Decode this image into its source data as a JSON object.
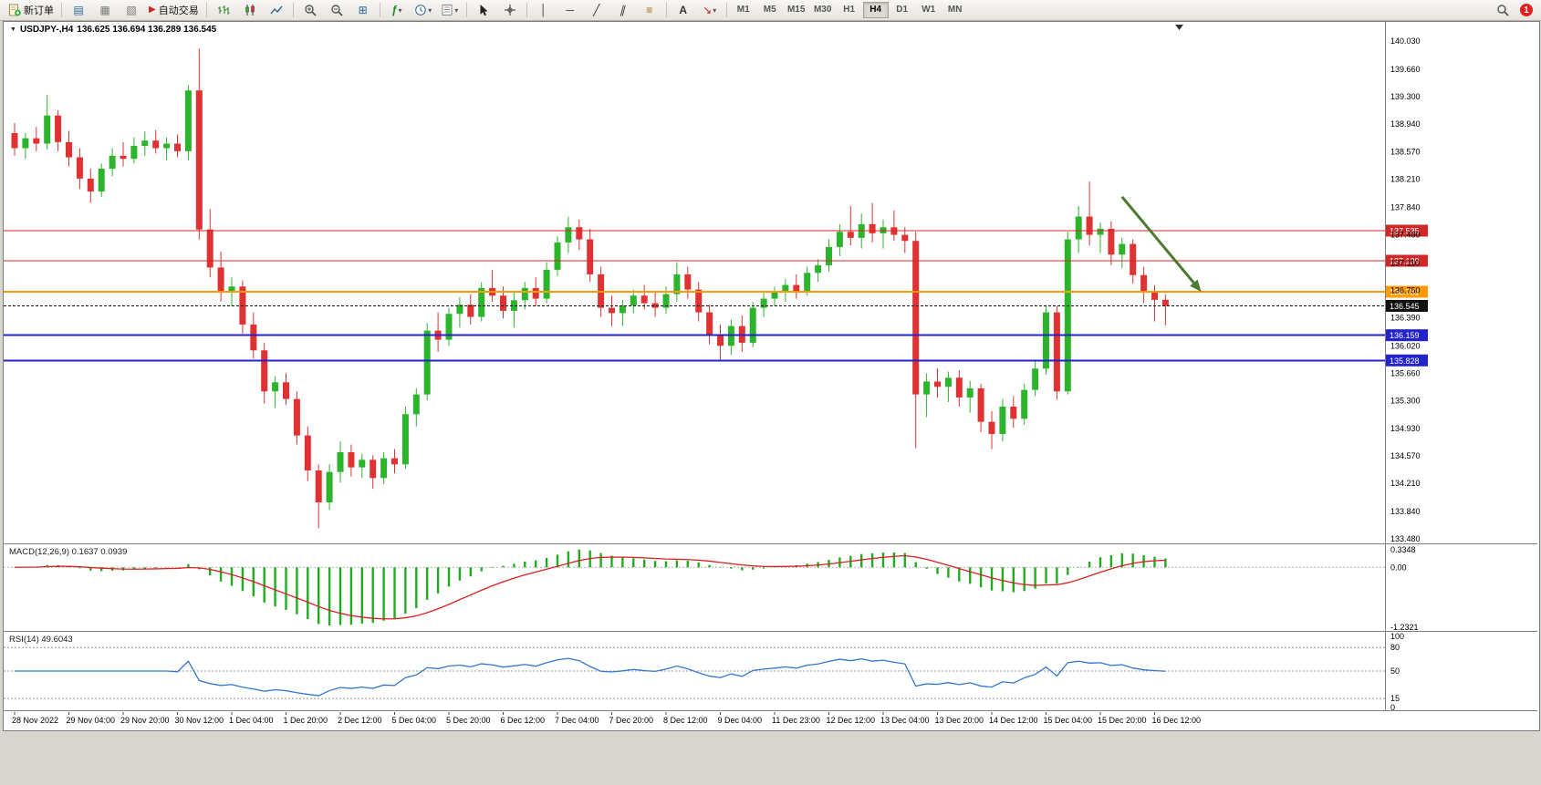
{
  "toolbar": {
    "new_order": "新订单",
    "auto_trading": "自动交易",
    "timeframes": [
      "M1",
      "M5",
      "M15",
      "M30",
      "H1",
      "H4",
      "D1",
      "W1",
      "MN"
    ],
    "active_timeframe": "H4",
    "notification_count": "1"
  },
  "icons": {
    "market_watch": "▤",
    "data_window": "▦",
    "navigator": "▧",
    "tile_windows": "⊞",
    "indicators": "ƒ",
    "vline": "│",
    "hline": "─",
    "trendline": "╱",
    "channel": "∥",
    "fibonacci": "≡",
    "text": "A",
    "arrows": "↘",
    "caret": "▾",
    "autotrade_play": "▶",
    "title_triangle": "▼"
  },
  "chart": {
    "symbol_title": "USDJPY-,H4",
    "ohlc_text": "136.625 136.694 136.289 136.545"
  },
  "macd": {
    "label": "MACD(12,26,9) 0.1637 0.0939",
    "axis_labels": [
      "0.3348",
      "0.00",
      "-1.2321"
    ]
  },
  "rsi": {
    "label": "RSI(14) 49.6043",
    "axis_labels": [
      "100",
      "80",
      "50",
      "15",
      "0"
    ],
    "levels": [
      80,
      50,
      15
    ]
  },
  "theme": {
    "bull": "#2DB42D",
    "bear": "#E03232",
    "macd_hist": "#1FAD1F",
    "macd_signal": "#D82222",
    "rsi_line": "#3377CC",
    "grid_dash": "#999999",
    "axis_line": "#808080",
    "arrow": "#4C7A2F"
  },
  "chart_data": {
    "type": "candlestick",
    "symbol": "USDJPY-",
    "timeframe": "H4",
    "current_bar": {
      "open": 136.625,
      "high": 136.694,
      "low": 136.289,
      "close": 136.545
    },
    "price_axis_labels": [
      "140.030",
      "139.660",
      "139.300",
      "138.940",
      "138.570",
      "138.210",
      "137.840",
      "137.480",
      "137.110",
      "136.750",
      "136.390",
      "136.020",
      "135.660",
      "135.300",
      "134.930",
      "134.570",
      "134.210",
      "133.840",
      "133.480"
    ],
    "time_labels": [
      "28 Nov 2022",
      "29 Nov 04:00",
      "29 Nov 20:00",
      "30 Nov 12:00",
      "1 Dec 04:00",
      "1 Dec 20:00",
      "2 Dec 12:00",
      "5 Dec 04:00",
      "5 Dec 20:00",
      "6 Dec 12:00",
      "7 Dec 04:00",
      "7 Dec 20:00",
      "8 Dec 12:00",
      "9 Dec 04:00",
      "11 Dec 23:00",
      "12 Dec 12:00",
      "13 Dec 04:00",
      "13 Dec 20:00",
      "14 Dec 12:00",
      "15 Dec 04:00",
      "15 Dec 20:00",
      "16 Dec 12:00"
    ],
    "candles_per_time_label": 5,
    "hlines": [
      {
        "value": 137.535,
        "label": "137.535",
        "color": "#D02828",
        "width": 1
      },
      {
        "value": 137.139,
        "label": "137.139",
        "color": "#D02828",
        "width": 1
      },
      {
        "value": 136.731,
        "label": "136.731",
        "color": "#FF9A00",
        "width": 2
      },
      {
        "value": 136.159,
        "label": "136.159",
        "color": "#2323CC",
        "width": 2
      },
      {
        "value": 135.828,
        "label": "135.828",
        "color": "#2323CC",
        "width": 2
      }
    ],
    "bid_line": {
      "value": 136.545,
      "label": "136.545",
      "color": "#101010"
    },
    "indicators": [
      {
        "name": "MACD",
        "params": [
          12,
          26,
          9
        ],
        "values": [
          "0.1637",
          "0.0939"
        ]
      },
      {
        "name": "RSI",
        "params": [
          14
        ],
        "values": [
          "49.6043"
        ]
      }
    ],
    "annotation_arrow": {
      "from": {
        "index": 102,
        "price": 137.98
      },
      "to": {
        "index": 109.3,
        "price": 136.73
      },
      "color": "#4C7A2F"
    },
    "candles_ohlc": [
      [
        138.82,
        138.95,
        138.52,
        138.62
      ],
      [
        138.62,
        138.82,
        138.48,
        138.75
      ],
      [
        138.75,
        138.9,
        138.58,
        138.68
      ],
      [
        138.68,
        139.32,
        138.6,
        139.05
      ],
      [
        139.05,
        139.12,
        138.58,
        138.7
      ],
      [
        138.7,
        138.85,
        138.38,
        138.5
      ],
      [
        138.5,
        138.62,
        138.08,
        138.22
      ],
      [
        138.22,
        138.35,
        137.9,
        138.05
      ],
      [
        138.05,
        138.42,
        137.98,
        138.35
      ],
      [
        138.35,
        138.62,
        138.25,
        138.52
      ],
      [
        138.52,
        138.7,
        138.38,
        138.48
      ],
      [
        138.48,
        138.76,
        138.42,
        138.65
      ],
      [
        138.65,
        138.84,
        138.52,
        138.72
      ],
      [
        138.72,
        138.86,
        138.55,
        138.62
      ],
      [
        138.62,
        138.76,
        138.46,
        138.68
      ],
      [
        138.68,
        138.8,
        138.5,
        138.58
      ],
      [
        138.58,
        139.45,
        138.46,
        139.38
      ],
      [
        139.38,
        139.93,
        137.42,
        137.55
      ],
      [
        137.55,
        137.82,
        136.92,
        137.05
      ],
      [
        137.05,
        137.26,
        136.6,
        136.72
      ],
      [
        136.72,
        136.92,
        136.54,
        136.8
      ],
      [
        136.8,
        136.88,
        136.18,
        136.3
      ],
      [
        136.3,
        136.46,
        135.85,
        135.96
      ],
      [
        135.96,
        136.06,
        135.26,
        135.42
      ],
      [
        135.42,
        135.62,
        135.2,
        135.54
      ],
      [
        135.54,
        135.66,
        135.24,
        135.32
      ],
      [
        135.32,
        135.42,
        134.72,
        134.84
      ],
      [
        134.84,
        134.96,
        134.24,
        134.38
      ],
      [
        134.38,
        134.46,
        133.62,
        133.96
      ],
      [
        133.96,
        134.46,
        133.86,
        134.36
      ],
      [
        134.36,
        134.76,
        134.22,
        134.62
      ],
      [
        134.62,
        134.72,
        134.3,
        134.42
      ],
      [
        134.42,
        134.6,
        134.28,
        134.52
      ],
      [
        134.52,
        134.58,
        134.14,
        134.28
      ],
      [
        134.28,
        134.62,
        134.2,
        134.54
      ],
      [
        134.54,
        134.66,
        134.34,
        134.46
      ],
      [
        134.46,
        135.22,
        134.4,
        135.12
      ],
      [
        135.12,
        135.46,
        134.96,
        135.38
      ],
      [
        135.38,
        136.32,
        135.3,
        136.22
      ],
      [
        136.22,
        136.46,
        135.94,
        136.1
      ],
      [
        136.1,
        136.52,
        136.02,
        136.44
      ],
      [
        136.44,
        136.66,
        136.26,
        136.56
      ],
      [
        136.56,
        136.7,
        136.3,
        136.4
      ],
      [
        136.4,
        136.86,
        136.34,
        136.78
      ],
      [
        136.78,
        137.02,
        136.6,
        136.68
      ],
      [
        136.68,
        136.8,
        136.38,
        136.48
      ],
      [
        136.48,
        136.72,
        136.26,
        136.62
      ],
      [
        136.62,
        136.86,
        136.5,
        136.78
      ],
      [
        136.78,
        136.92,
        136.54,
        136.64
      ],
      [
        136.64,
        137.12,
        136.58,
        137.02
      ],
      [
        137.02,
        137.46,
        136.94,
        137.38
      ],
      [
        137.38,
        137.72,
        137.24,
        137.58
      ],
      [
        137.58,
        137.68,
        137.28,
        137.42
      ],
      [
        137.42,
        137.56,
        136.86,
        136.96
      ],
      [
        136.96,
        137.06,
        136.4,
        136.52
      ],
      [
        136.52,
        136.68,
        136.28,
        136.45
      ],
      [
        136.45,
        136.62,
        136.28,
        136.55
      ],
      [
        136.55,
        136.76,
        136.45,
        136.68
      ],
      [
        136.68,
        136.82,
        136.5,
        136.58
      ],
      [
        136.58,
        136.72,
        136.4,
        136.52
      ],
      [
        136.52,
        136.8,
        136.44,
        136.7
      ],
      [
        136.7,
        137.12,
        136.6,
        136.96
      ],
      [
        136.96,
        137.06,
        136.64,
        136.76
      ],
      [
        136.76,
        136.86,
        136.34,
        136.46
      ],
      [
        136.46,
        136.56,
        136.04,
        136.16
      ],
      [
        136.16,
        136.3,
        135.83,
        136.02
      ],
      [
        136.02,
        136.36,
        135.9,
        136.28
      ],
      [
        136.28,
        136.42,
        135.94,
        136.06
      ],
      [
        136.06,
        136.6,
        136.0,
        136.52
      ],
      [
        136.52,
        136.72,
        136.4,
        136.64
      ],
      [
        136.64,
        136.8,
        136.54,
        136.72
      ],
      [
        136.72,
        136.9,
        136.6,
        136.82
      ],
      [
        136.82,
        136.96,
        136.64,
        136.74
      ],
      [
        136.74,
        137.06,
        136.68,
        136.98
      ],
      [
        136.98,
        137.16,
        136.86,
        137.08
      ],
      [
        137.08,
        137.42,
        137.0,
        137.32
      ],
      [
        137.32,
        137.62,
        137.2,
        137.52
      ],
      [
        137.52,
        137.86,
        137.34,
        137.44
      ],
      [
        137.44,
        137.76,
        137.3,
        137.62
      ],
      [
        137.62,
        137.9,
        137.38,
        137.5
      ],
      [
        137.5,
        137.68,
        137.3,
        137.58
      ],
      [
        137.58,
        137.8,
        137.4,
        137.48
      ],
      [
        137.48,
        137.58,
        137.24,
        137.4
      ],
      [
        137.4,
        137.52,
        134.67,
        135.38
      ],
      [
        135.38,
        135.66,
        135.08,
        135.55
      ],
      [
        135.55,
        135.72,
        135.34,
        135.48
      ],
      [
        135.48,
        135.68,
        135.28,
        135.6
      ],
      [
        135.6,
        135.7,
        135.22,
        135.34
      ],
      [
        135.34,
        135.56,
        135.14,
        135.46
      ],
      [
        135.46,
        135.52,
        134.88,
        135.02
      ],
      [
        135.02,
        135.16,
        134.66,
        134.86
      ],
      [
        134.86,
        135.32,
        134.76,
        135.22
      ],
      [
        135.22,
        135.36,
        134.94,
        135.06
      ],
      [
        135.06,
        135.52,
        134.98,
        135.44
      ],
      [
        135.44,
        135.82,
        135.36,
        135.72
      ],
      [
        135.72,
        136.56,
        135.64,
        136.46
      ],
      [
        136.46,
        136.54,
        135.31,
        135.42
      ],
      [
        135.42,
        137.52,
        135.38,
        137.42
      ],
      [
        137.42,
        137.86,
        137.24,
        137.72
      ],
      [
        137.72,
        138.18,
        137.34,
        137.48
      ],
      [
        137.48,
        137.64,
        137.24,
        137.56
      ],
      [
        137.56,
        137.66,
        137.08,
        137.22
      ],
      [
        137.22,
        137.44,
        137.04,
        137.36
      ],
      [
        137.36,
        137.42,
        136.84,
        136.95
      ],
      [
        136.95,
        137.06,
        136.58,
        136.72
      ],
      [
        136.72,
        136.82,
        136.34,
        136.625
      ],
      [
        136.625,
        136.694,
        136.289,
        136.545
      ]
    ]
  }
}
